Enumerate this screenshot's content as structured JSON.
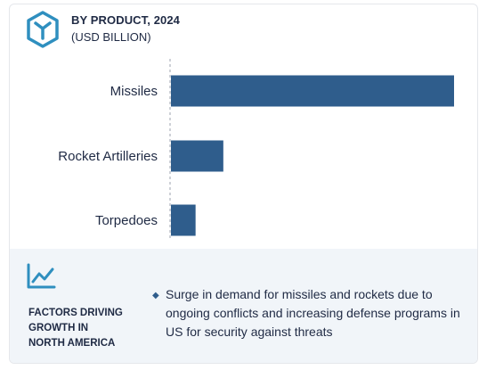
{
  "header": {
    "title": "BY PRODUCT, 2024",
    "subtitle": "(USD BILLION)",
    "icon": "hexagon-y-icon",
    "accent_color": "#2f5d8c"
  },
  "chart_data": {
    "type": "bar",
    "orientation": "horizontal",
    "title": "BY PRODUCT, 2024",
    "subtitle": "(USD BILLION)",
    "categories": [
      "Missiles",
      "Rocket Artilleries",
      "Torpedoes"
    ],
    "values": [
      100,
      18.5,
      8.7
    ],
    "bar_color": "#2f5d8c",
    "xlim": [
      0,
      100
    ],
    "grid": false,
    "legend": "none"
  },
  "footer": {
    "icon": "trend-line-icon",
    "label": "FACTORS DRIVING\nGROWTH IN\nNORTH AMERICA",
    "bullet_icon": "diamond-bullet-icon",
    "text": "Surge in demand for missiles and rockets due to ongoing conflicts and increasing defense programs in US for security against threats",
    "background": "#f1f5f9"
  }
}
